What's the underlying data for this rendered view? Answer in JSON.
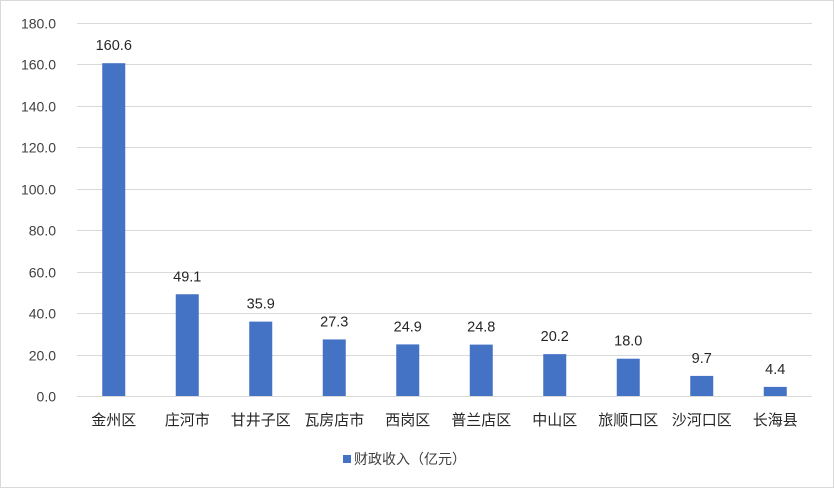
{
  "chart_data": {
    "type": "bar",
    "categories": [
      "金州区",
      "庄河市",
      "甘井子区",
      "瓦房店市",
      "西岗区",
      "普兰店区",
      "中山区",
      "旅顺口区",
      "沙河口区",
      "长海县"
    ],
    "series": [
      {
        "name": "财政收入（亿元）",
        "values": [
          160.6,
          49.1,
          35.9,
          27.3,
          24.9,
          24.8,
          20.2,
          18.0,
          9.7,
          4.4
        ],
        "data_labels": [
          "160.6",
          "49.1",
          "35.9",
          "27.3",
          "24.9",
          "24.8",
          "20.2",
          "18.0",
          "9.7",
          "4.4"
        ],
        "color": "#4472c4"
      }
    ],
    "ylim": [
      0,
      180
    ],
    "yticks": [
      0,
      20,
      40,
      60,
      80,
      100,
      120,
      140,
      160,
      180
    ],
    "ytick_labels": [
      "0.0",
      "20.0",
      "40.0",
      "60.0",
      "80.0",
      "100.0",
      "120.0",
      "140.0",
      "160.0",
      "180.0"
    ],
    "grid": true,
    "legend_position": "bottom",
    "gridline_color": "#d9d9d9"
  }
}
